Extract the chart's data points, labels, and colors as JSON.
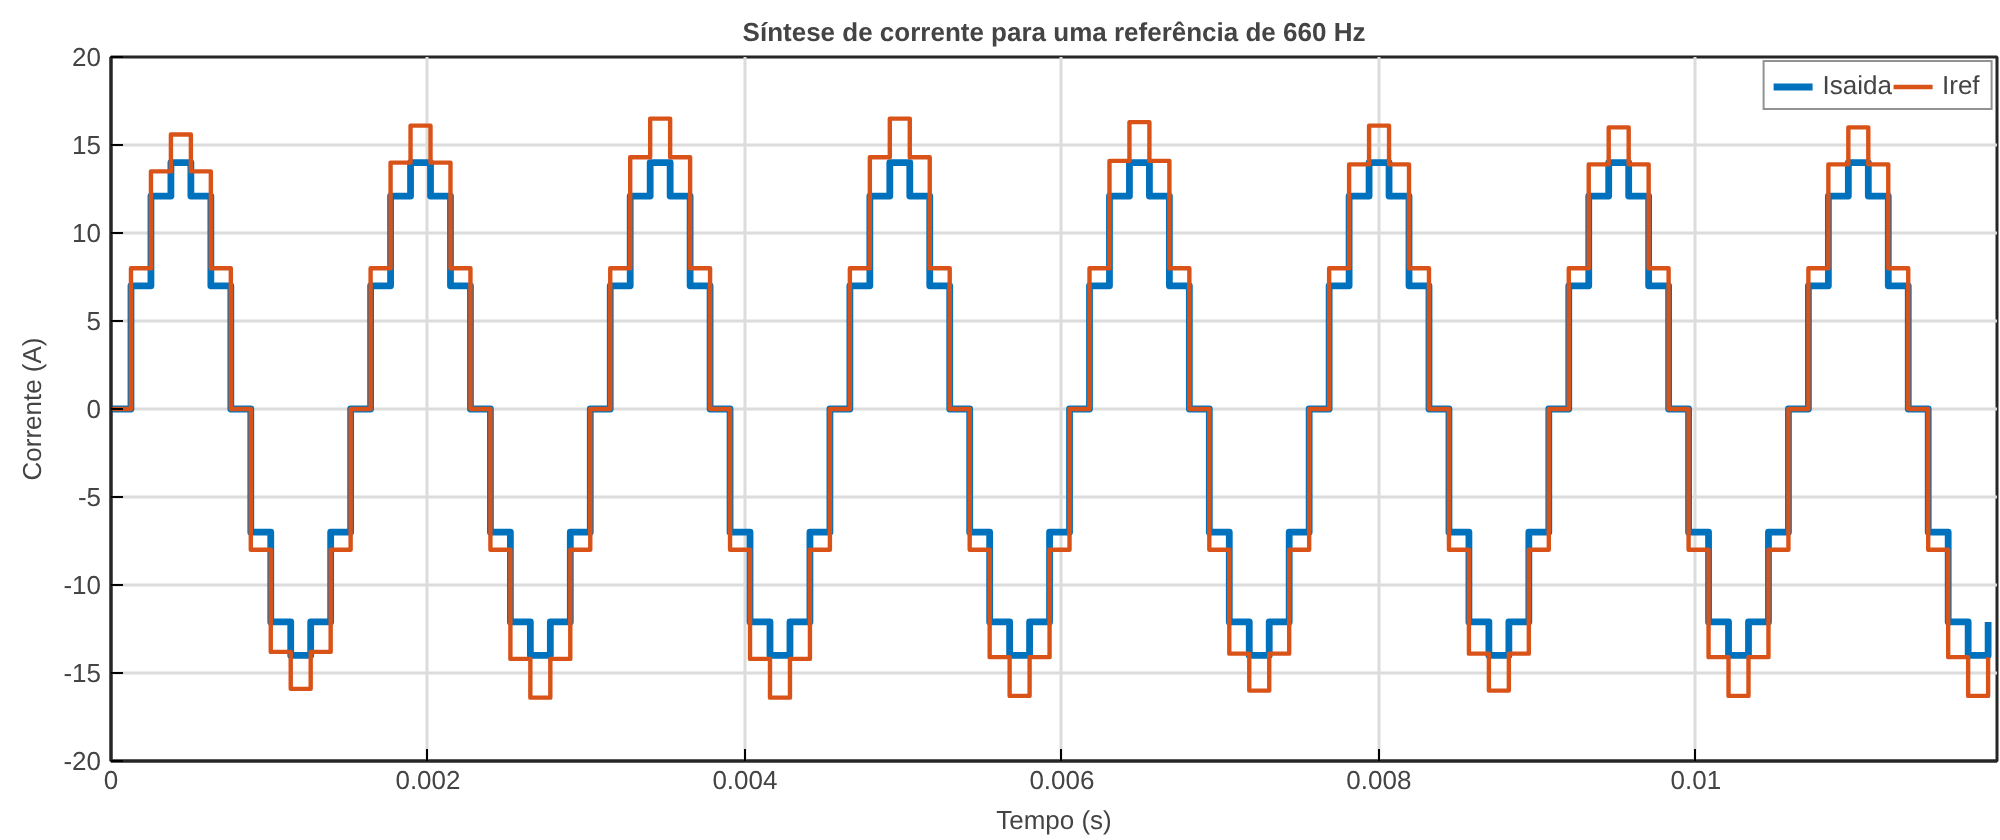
{
  "chart_data": {
    "type": "step",
    "title": "Síntese de corrente para uma referência de 660 Hz",
    "xlabel": "Tempo (s)",
    "ylabel": "Corrente (A)",
    "x": [
      0,
      0.000126,
      0.000252,
      0.000378,
      0.000504,
      0.00063,
      0.000756,
      0.000882,
      0.001008,
      0.001134,
      0.00126,
      0.001386,
      0.001512,
      0.001638,
      0.001764,
      0.00189,
      0.002016,
      0.002142,
      0.002268,
      0.002394,
      0.00252,
      0.002646,
      0.002772,
      0.002898,
      0.003024,
      0.00315,
      0.003276,
      0.003402,
      0.003528,
      0.003654,
      0.00378,
      0.003906,
      0.004032,
      0.004158,
      0.004284,
      0.00441,
      0.004536,
      0.004662,
      0.004788,
      0.004914,
      0.00504,
      0.005166,
      0.005292,
      0.005418,
      0.005544,
      0.00567,
      0.005796,
      0.005922,
      0.006048,
      0.006174,
      0.0063,
      0.006426,
      0.006552,
      0.006678,
      0.006804,
      0.00693,
      0.007056,
      0.007182,
      0.007308,
      0.007434,
      0.00756,
      0.007686,
      0.007812,
      0.007938,
      0.008064,
      0.00819,
      0.008316,
      0.008442,
      0.008568,
      0.008694,
      0.00882,
      0.008946,
      0.009072,
      0.009198,
      0.009324,
      0.00945,
      0.009576,
      0.009702,
      0.009828,
      0.009954,
      0.01008,
      0.010206,
      0.010332,
      0.010458,
      0.010584,
      0.01071,
      0.010836,
      0.010962,
      0.011088,
      0.011214,
      0.01134,
      0.011466,
      0.011592,
      0.011718,
      0.011844
    ],
    "series": [
      {
        "name": "Isaida",
        "color": "#0072bd",
        "values": [
          0,
          7,
          12.1,
          14,
          12.1,
          7,
          0,
          -7,
          -12.1,
          -14,
          -12.1,
          -7,
          0,
          7,
          12.1,
          14,
          12.1,
          7,
          0,
          -7,
          -12.1,
          -14,
          -12.1,
          -7,
          0,
          7,
          12.1,
          14,
          12.1,
          7,
          0,
          -7,
          -12.1,
          -14,
          -12.1,
          -7,
          0,
          7,
          12.1,
          14,
          12.1,
          7,
          0,
          -7,
          -12.1,
          -14,
          -12.1,
          -7,
          0,
          7,
          12.1,
          14,
          12.1,
          7,
          0,
          -7,
          -12.1,
          -14,
          -12.1,
          -7,
          0,
          7,
          12.1,
          14,
          12.1,
          7,
          0,
          -7,
          -12.1,
          -14,
          -12.1,
          -7,
          0,
          7,
          12.1,
          14,
          12.1,
          7,
          0,
          -7,
          -12.1,
          -14,
          -12.1,
          -7,
          0,
          7,
          12.1,
          14,
          12.1,
          7,
          0,
          -7,
          -12.1,
          -14,
          -12.1
        ]
      },
      {
        "name": "Iref",
        "color": "#d95319",
        "values": [
          0,
          8,
          13.5,
          15.6,
          13.5,
          8,
          0,
          -8,
          -13.8,
          -15.9,
          -13.8,
          -8,
          0,
          8,
          14,
          16.1,
          14,
          8,
          0,
          -8,
          -14.2,
          -16.4,
          -14.2,
          -8,
          0,
          8,
          14.3,
          16.5,
          14.3,
          8,
          0,
          -8,
          -14.2,
          -16.4,
          -14.2,
          -8,
          0,
          8,
          14.3,
          16.5,
          14.3,
          8,
          0,
          -8,
          -14.1,
          -16.3,
          -14.1,
          -8,
          0,
          8,
          14.1,
          16.3,
          14.1,
          8,
          0,
          -8,
          -13.9,
          -16,
          -13.9,
          -8,
          0,
          8,
          13.9,
          16.1,
          13.9,
          8,
          0,
          -8,
          -13.9,
          -16,
          -13.9,
          -8,
          0,
          8,
          13.9,
          16,
          13.9,
          8,
          0,
          -8,
          -14.1,
          -16.3,
          -14.1,
          -8,
          0,
          8,
          13.9,
          16,
          13.9,
          8,
          0,
          -8,
          -14.1,
          -16.3,
          -14.1
        ]
      }
    ],
    "xlim": [
      0,
      0.0119
    ],
    "ylim": [
      -20,
      20
    ],
    "xticks": [
      0,
      0.002,
      0.004,
      0.006,
      0.008,
      0.01
    ],
    "yticks": [
      -20,
      -15,
      -10,
      -5,
      0,
      5,
      10,
      15,
      20
    ],
    "grid": true,
    "legend": "top right"
  }
}
